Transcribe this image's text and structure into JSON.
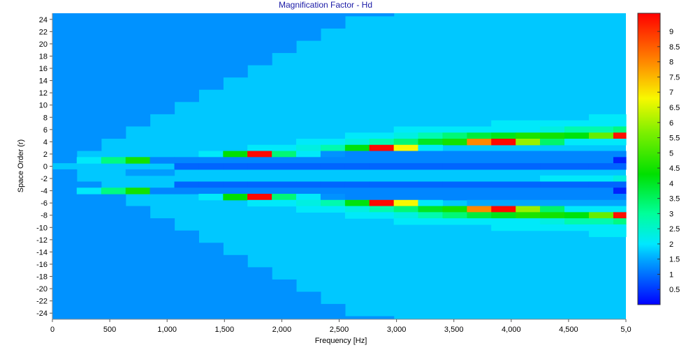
{
  "chart_data": {
    "type": "heatmap",
    "title": "Magnification Factor - Hd",
    "xlabel": "Frequency [Hz]",
    "ylabel": "Space Order (r)",
    "xlim": [
      0,
      5000
    ],
    "ylim": [
      -25,
      25
    ],
    "x_ticks": [
      "0",
      "500",
      "1,000",
      "1,500",
      "2,000",
      "2,500",
      "3,000",
      "3,500",
      "4,000",
      "4,500",
      "5,0"
    ],
    "y_ticks": [
      "24",
      "22",
      "20",
      "18",
      "16",
      "14",
      "12",
      "10",
      "8",
      "6",
      "4",
      "2",
      "0",
      "-2",
      "-4",
      "-6",
      "-8",
      "-10",
      "-12",
      "-14",
      "-16",
      "-18",
      "-20",
      "-22",
      "-24"
    ],
    "x_bins": [
      0,
      212,
      425,
      638,
      850,
      1063,
      1275,
      1488,
      1700,
      1913,
      2125,
      2338,
      2551,
      2763,
      2976,
      3188,
      3401,
      3614,
      3826,
      4039,
      4251,
      4464,
      4677,
      4890,
      5000
    ],
    "background_value": 1.75,
    "colorbar": {
      "min": 0,
      "max": 9.6,
      "ticks": [
        "0.5",
        "1",
        "1.5",
        "2",
        "2.5",
        "3",
        "3.5",
        "4",
        "4.5",
        "5",
        "5.5",
        "6",
        "6.5",
        "7",
        "7.5",
        "8",
        "8.5",
        "9"
      ],
      "stops": [
        {
          "v": 0,
          "color": "#0000ff"
        },
        {
          "v": 1.0,
          "color": "#0070ff"
        },
        {
          "v": 1.5,
          "color": "#00a8ff"
        },
        {
          "v": 2.0,
          "color": "#00e8ff"
        },
        {
          "v": 3.0,
          "color": "#00ff9a"
        },
        {
          "v": 4.3,
          "color": "#00e000"
        },
        {
          "v": 5.7,
          "color": "#80f000"
        },
        {
          "v": 6.8,
          "color": "#f8f800"
        },
        {
          "v": 8.0,
          "color": "#ff8800"
        },
        {
          "v": 9.6,
          "color": "#ff0000"
        }
      ]
    },
    "boundary_orders": [
      0,
      2,
      4,
      6,
      8,
      10,
      12,
      14,
      16,
      18,
      20,
      22,
      24,
      24,
      25,
      25,
      25,
      25,
      25,
      25,
      25,
      25,
      25,
      25
    ],
    "rows": [
      {
        "r": 8,
        "values": [
          1.75,
          1.75,
          1.75,
          1.75,
          1.75,
          1.75,
          1.75,
          1.75,
          1.75,
          1.75,
          1.75,
          1.75,
          1.75,
          1.75,
          1.75,
          1.75,
          1.75,
          1.75,
          1.75,
          1.75,
          1.75,
          1.75,
          2.05,
          2.05
        ]
      },
      {
        "r": 7,
        "values": [
          1.75,
          1.75,
          1.75,
          1.75,
          1.75,
          1.75,
          1.75,
          1.75,
          1.75,
          1.75,
          1.75,
          1.75,
          1.75,
          1.75,
          1.75,
          1.75,
          1.75,
          1.75,
          2.05,
          2.05,
          2.05,
          2.05,
          2.05,
          2.05
        ]
      },
      {
        "r": 6,
        "values": [
          1.75,
          1.75,
          1.75,
          1.75,
          1.75,
          1.75,
          1.75,
          1.75,
          1.75,
          1.75,
          1.75,
          1.75,
          1.75,
          1.75,
          2.05,
          2.05,
          2.05,
          2.05,
          2.05,
          2.05,
          2.3,
          2.8,
          2.8,
          3.2
        ]
      },
      {
        "r": 5,
        "values": [
          1.75,
          1.75,
          1.75,
          1.75,
          1.75,
          1.75,
          1.75,
          1.75,
          1.75,
          1.75,
          1.75,
          1.75,
          2.05,
          2.05,
          2.3,
          2.8,
          3.3,
          3.8,
          4.1,
          4.6,
          4.5,
          4.2,
          5.4,
          9.4
        ]
      },
      {
        "r": 4,
        "values": [
          1.75,
          1.75,
          1.75,
          1.75,
          1.75,
          1.75,
          1.75,
          1.75,
          1.75,
          1.75,
          2.05,
          2.05,
          2.3,
          2.8,
          3.3,
          4.0,
          4.5,
          8.0,
          9.5,
          5.9,
          3.4,
          2.05,
          2.05,
          2.05
        ]
      },
      {
        "r": 3,
        "values": [
          1.75,
          1.75,
          1.75,
          1.75,
          1.75,
          1.75,
          1.75,
          1.75,
          2.05,
          2.05,
          2.3,
          2.8,
          4.2,
          9.5,
          6.8,
          2.05,
          1.75,
          1.75,
          1.75,
          1.75,
          1.75,
          1.75,
          1.75,
          1.75
        ]
      },
      {
        "r": 2,
        "values": [
          1.75,
          1.75,
          1.75,
          1.75,
          1.75,
          1.75,
          2.05,
          4.3,
          9.5,
          3.3,
          2.05,
          1.3,
          1.2,
          1.2,
          1.2,
          1.2,
          1.2,
          1.2,
          1.2,
          1.2,
          1.2,
          1.2,
          1.2,
          1.2
        ]
      },
      {
        "r": 1,
        "values": [
          1.75,
          2.05,
          3.2,
          4.5,
          1.2,
          1.2,
          1.2,
          1.2,
          1.2,
          1.2,
          1.2,
          1.2,
          1.2,
          1.2,
          1.2,
          1.2,
          1.2,
          1.2,
          1.2,
          1.2,
          1.2,
          1.2,
          1.2,
          0.3
        ]
      },
      {
        "r": 0,
        "values": [
          1.75,
          1.75,
          1.75,
          1.75,
          1.75,
          0.9,
          0.9,
          0.9,
          0.9,
          0.9,
          0.9,
          0.9,
          0.9,
          0.9,
          0.9,
          0.9,
          0.9,
          0.9,
          0.9,
          0.9,
          0.9,
          0.9,
          0.9,
          0.9
        ]
      },
      {
        "r": -1,
        "values": [
          1.75,
          1.75,
          1.75,
          1.4,
          1.4,
          1.75,
          1.75,
          1.75,
          1.75,
          1.75,
          1.75,
          1.75,
          1.75,
          1.75,
          1.75,
          1.75,
          1.75,
          1.75,
          1.75,
          1.75,
          1.75,
          1.75,
          1.75,
          1.75
        ]
      },
      {
        "r": -2,
        "values": [
          1.75,
          1.75,
          1.75,
          1.75,
          1.75,
          1.75,
          1.75,
          1.75,
          1.75,
          1.75,
          1.75,
          1.75,
          1.75,
          1.75,
          1.75,
          1.75,
          1.75,
          1.75,
          1.75,
          1.75,
          2.05,
          2.05,
          2.05,
          2.3
        ]
      },
      {
        "r": -3,
        "values": [
          1.75,
          1.75,
          1.75,
          1.75,
          1.75,
          0.9,
          0.9,
          0.9,
          0.9,
          0.9,
          0.9,
          0.9,
          0.9,
          0.9,
          0.9,
          0.9,
          0.9,
          0.9,
          0.9,
          0.9,
          0.9,
          0.9,
          0.9,
          0.9
        ]
      },
      {
        "r": -4,
        "values": [
          1.75,
          2.05,
          3.2,
          4.5,
          1.2,
          1.2,
          1.2,
          1.2,
          1.2,
          1.2,
          1.2,
          1.2,
          1.2,
          1.2,
          1.2,
          1.2,
          1.2,
          1.2,
          1.2,
          1.2,
          1.2,
          1.2,
          1.2,
          0.3
        ]
      },
      {
        "r": -5,
        "values": [
          1.75,
          1.75,
          1.75,
          1.75,
          1.75,
          1.75,
          2.05,
          4.3,
          9.5,
          3.3,
          2.05,
          1.3,
          1.2,
          1.2,
          1.2,
          1.2,
          1.2,
          1.2,
          1.2,
          1.2,
          1.2,
          1.2,
          1.2,
          1.2
        ]
      },
      {
        "r": -6,
        "values": [
          1.75,
          1.75,
          1.75,
          1.75,
          1.75,
          1.75,
          1.75,
          1.75,
          2.05,
          2.05,
          2.3,
          2.8,
          4.2,
          9.5,
          6.8,
          2.05,
          1.75,
          1.5,
          1.5,
          1.5,
          1.5,
          1.5,
          1.5,
          1.5
        ]
      },
      {
        "r": -7,
        "values": [
          1.75,
          1.75,
          1.75,
          1.75,
          1.75,
          1.75,
          1.75,
          1.75,
          1.75,
          1.75,
          2.05,
          2.05,
          2.3,
          2.8,
          3.3,
          4.0,
          4.5,
          8.0,
          9.5,
          5.9,
          3.4,
          2.05,
          2.05,
          2.05
        ]
      },
      {
        "r": -8,
        "values": [
          1.75,
          1.75,
          1.75,
          1.75,
          1.75,
          1.75,
          1.75,
          1.75,
          1.75,
          1.75,
          1.75,
          1.75,
          2.05,
          2.05,
          2.3,
          2.8,
          3.3,
          3.8,
          4.1,
          4.6,
          4.5,
          4.2,
          5.4,
          9.4
        ]
      },
      {
        "r": -9,
        "values": [
          1.75,
          1.75,
          1.75,
          1.75,
          1.75,
          1.75,
          1.75,
          1.75,
          1.75,
          1.75,
          1.75,
          1.75,
          1.75,
          1.75,
          2.05,
          2.05,
          2.05,
          2.05,
          2.05,
          2.05,
          2.3,
          2.8,
          2.8,
          3.2
        ]
      },
      {
        "r": -10,
        "values": [
          1.75,
          1.75,
          1.75,
          1.75,
          1.75,
          1.75,
          1.75,
          1.75,
          1.75,
          1.75,
          1.75,
          1.75,
          1.75,
          1.75,
          1.75,
          1.75,
          1.75,
          1.75,
          2.05,
          2.05,
          2.05,
          2.05,
          2.05,
          2.05
        ]
      },
      {
        "r": -11,
        "values": [
          1.75,
          1.75,
          1.75,
          1.75,
          1.75,
          1.75,
          1.75,
          1.75,
          1.75,
          1.75,
          1.75,
          1.75,
          1.75,
          1.75,
          1.75,
          1.75,
          1.75,
          1.75,
          1.75,
          1.75,
          1.75,
          1.75,
          2.05,
          2.05
        ]
      }
    ]
  }
}
